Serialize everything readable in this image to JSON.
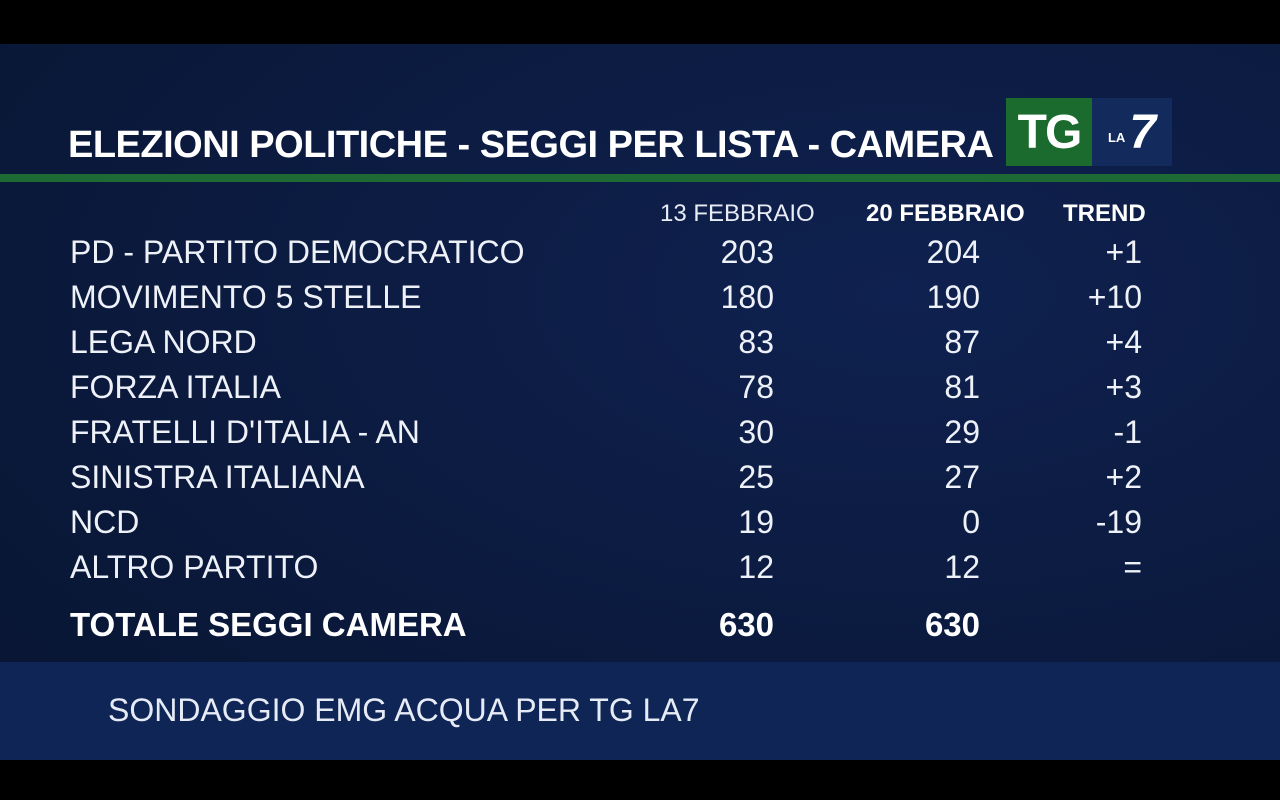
{
  "header": {
    "title": "ELEZIONI POLITICHE - SEGGI  PER  LISTA - CAMERA",
    "logo_tg": "TG",
    "logo_la": "LA",
    "logo_7": "7"
  },
  "colors": {
    "background": "#0b1a3e",
    "accent_green": "#1e6a35",
    "logo_green": "#1c6b2e",
    "logo_blue": "#132a5c",
    "footer": "#0e2556"
  },
  "chart_data": {
    "type": "table",
    "title": "ELEZIONI POLITICHE - SEGGI  PER  LISTA - CAMERA",
    "columns": [
      "13 FEBBRAIO",
      "20 FEBBRAIO",
      "TREND"
    ],
    "rows": [
      {
        "label": "PD - PARTITO DEMOCRATICO",
        "v1": "203",
        "v2": "204",
        "trend": "+1"
      },
      {
        "label": "MOVIMENTO 5 STELLE",
        "v1": "180",
        "v2": "190",
        "trend": "+10"
      },
      {
        "label": "LEGA NORD",
        "v1": "83",
        "v2": "87",
        "trend": "+4"
      },
      {
        "label": "FORZA ITALIA",
        "v1": "78",
        "v2": "81",
        "trend": "+3"
      },
      {
        "label": "FRATELLI D'ITALIA - AN",
        "v1": "30",
        "v2": "29",
        "trend": "-1"
      },
      {
        "label": "SINISTRA ITALIANA",
        "v1": "25",
        "v2": "27",
        "trend": "+2"
      },
      {
        "label": "NCD",
        "v1": "19",
        "v2": "0",
        "trend": "-19"
      },
      {
        "label": "ALTRO PARTITO",
        "v1": "12",
        "v2": "12",
        "trend": "="
      }
    ],
    "total": {
      "label": "TOTALE SEGGI CAMERA",
      "v1": "630",
      "v2": "630"
    }
  },
  "footer": {
    "source": "SONDAGGIO EMG ACQUA PER TG LA7"
  }
}
